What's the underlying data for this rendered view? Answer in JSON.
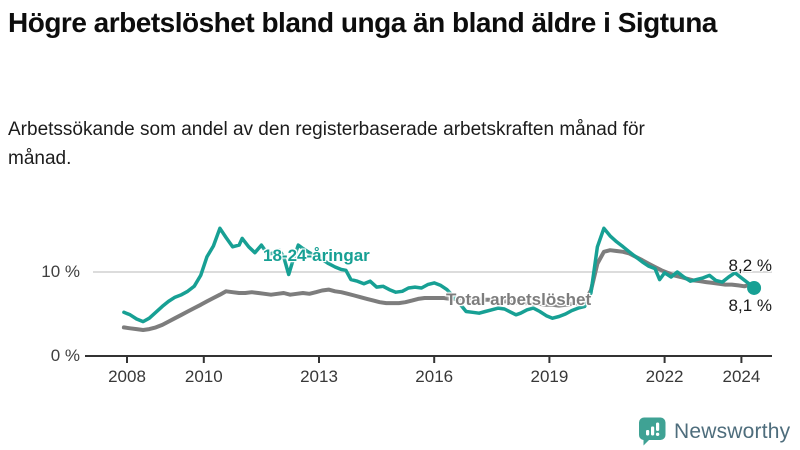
{
  "header": {
    "title": "Högre arbetslöshet bland unga än bland äldre i Sigtuna",
    "subtitle": "Arbetssökande som andel av den registerbaserade arbetskraften månad för månad."
  },
  "chart_data": {
    "type": "line",
    "title": "Högre arbetslöshet bland unga än bland äldre i Sigtuna",
    "subtitle": "Arbetssökande som andel av den registerbaserade arbetskraften månad för månad.",
    "unit": "%",
    "grid": "horizontal-10-only",
    "legend_position": "inline-labels-on-lines",
    "x_axis": {
      "min": 2007.9,
      "max": 2024.6,
      "ticks": [
        2008,
        2010,
        2013,
        2016,
        2019,
        2022,
        2024
      ]
    },
    "y_axis": {
      "min": 0,
      "max": 16,
      "ticks": [
        {
          "value": 10,
          "label": "10 %"
        },
        {
          "value": 0,
          "label": "0 %"
        }
      ],
      "grid_values": [
        10
      ]
    },
    "series": [
      {
        "name": "Total arbetslöshet",
        "color": "#7d7d7d",
        "width": 4,
        "end_dot": false,
        "end_label": "8,2 %",
        "end_value": 8.2,
        "points": [
          [
            2007.92,
            3.4
          ],
          [
            2008.08,
            3.3
          ],
          [
            2008.25,
            3.2
          ],
          [
            2008.42,
            3.1
          ],
          [
            2008.58,
            3.2
          ],
          [
            2008.75,
            3.4
          ],
          [
            2008.92,
            3.7
          ],
          [
            2009.08,
            4.1
          ],
          [
            2009.25,
            4.5
          ],
          [
            2009.42,
            4.9
          ],
          [
            2009.58,
            5.3
          ],
          [
            2009.75,
            5.7
          ],
          [
            2009.92,
            6.1
          ],
          [
            2010.08,
            6.5
          ],
          [
            2010.25,
            6.9
          ],
          [
            2010.42,
            7.3
          ],
          [
            2010.58,
            7.7
          ],
          [
            2010.75,
            7.6
          ],
          [
            2010.92,
            7.5
          ],
          [
            2011.08,
            7.5
          ],
          [
            2011.25,
            7.6
          ],
          [
            2011.42,
            7.5
          ],
          [
            2011.58,
            7.4
          ],
          [
            2011.75,
            7.3
          ],
          [
            2011.92,
            7.4
          ],
          [
            2012.08,
            7.5
          ],
          [
            2012.25,
            7.3
          ],
          [
            2012.42,
            7.4
          ],
          [
            2012.58,
            7.5
          ],
          [
            2012.75,
            7.4
          ],
          [
            2012.92,
            7.6
          ],
          [
            2013.08,
            7.8
          ],
          [
            2013.25,
            7.9
          ],
          [
            2013.42,
            7.7
          ],
          [
            2013.58,
            7.6
          ],
          [
            2013.75,
            7.4
          ],
          [
            2013.92,
            7.2
          ],
          [
            2014.08,
            7.0
          ],
          [
            2014.25,
            6.8
          ],
          [
            2014.42,
            6.6
          ],
          [
            2014.58,
            6.4
          ],
          [
            2014.75,
            6.3
          ],
          [
            2014.92,
            6.3
          ],
          [
            2015.08,
            6.3
          ],
          [
            2015.25,
            6.4
          ],
          [
            2015.42,
            6.6
          ],
          [
            2015.58,
            6.8
          ],
          [
            2015.75,
            6.9
          ],
          [
            2015.92,
            6.9
          ],
          [
            2016.08,
            6.9
          ],
          [
            2016.25,
            6.9
          ],
          [
            2016.42,
            6.8
          ],
          [
            2016.58,
            6.8
          ],
          [
            2016.75,
            6.9
          ],
          [
            2016.92,
            6.9
          ],
          [
            2017.08,
            6.8
          ],
          [
            2017.25,
            6.7
          ],
          [
            2017.42,
            6.7
          ],
          [
            2017.58,
            6.6
          ],
          [
            2017.75,
            6.5
          ],
          [
            2017.92,
            6.5
          ],
          [
            2018.08,
            6.4
          ],
          [
            2018.25,
            6.3
          ],
          [
            2018.42,
            6.3
          ],
          [
            2018.58,
            6.2
          ],
          [
            2018.75,
            6.2
          ],
          [
            2018.92,
            6.1
          ],
          [
            2019.08,
            6.1
          ],
          [
            2019.25,
            6.0
          ],
          [
            2019.42,
            6.1
          ],
          [
            2019.58,
            6.2
          ],
          [
            2019.75,
            6.3
          ],
          [
            2019.92,
            6.5
          ],
          [
            2020.08,
            7.8
          ],
          [
            2020.25,
            11.0
          ],
          [
            2020.42,
            12.4
          ],
          [
            2020.58,
            12.6
          ],
          [
            2020.75,
            12.5
          ],
          [
            2020.92,
            12.4
          ],
          [
            2021.08,
            12.2
          ],
          [
            2021.25,
            11.8
          ],
          [
            2021.42,
            11.4
          ],
          [
            2021.58,
            11.0
          ],
          [
            2021.75,
            10.6
          ],
          [
            2021.92,
            10.2
          ],
          [
            2022.08,
            9.9
          ],
          [
            2022.25,
            9.6
          ],
          [
            2022.42,
            9.4
          ],
          [
            2022.58,
            9.2
          ],
          [
            2022.75,
            9.0
          ],
          [
            2022.92,
            8.9
          ],
          [
            2023.08,
            8.8
          ],
          [
            2023.25,
            8.7
          ],
          [
            2023.42,
            8.6
          ],
          [
            2023.58,
            8.5
          ],
          [
            2023.75,
            8.5
          ],
          [
            2023.92,
            8.4
          ],
          [
            2024.08,
            8.3
          ],
          [
            2024.21,
            8.5
          ],
          [
            2024.33,
            8.2
          ]
        ]
      },
      {
        "name": "18-24-åringar",
        "color": "#17a094",
        "width": 3.5,
        "end_dot": true,
        "end_label": "8,1 %",
        "end_value": 8.1,
        "points": [
          [
            2007.92,
            5.2
          ],
          [
            2008.08,
            4.9
          ],
          [
            2008.25,
            4.4
          ],
          [
            2008.42,
            4.1
          ],
          [
            2008.58,
            4.5
          ],
          [
            2008.75,
            5.2
          ],
          [
            2008.92,
            5.9
          ],
          [
            2009.08,
            6.5
          ],
          [
            2009.25,
            7.0
          ],
          [
            2009.42,
            7.3
          ],
          [
            2009.58,
            7.7
          ],
          [
            2009.75,
            8.3
          ],
          [
            2009.92,
            9.6
          ],
          [
            2010.08,
            11.8
          ],
          [
            2010.25,
            13.1
          ],
          [
            2010.42,
            15.2
          ],
          [
            2010.58,
            14.1
          ],
          [
            2010.75,
            13.0
          ],
          [
            2010.92,
            13.2
          ],
          [
            2011.0,
            14.0
          ],
          [
            2011.17,
            13.0
          ],
          [
            2011.33,
            12.3
          ],
          [
            2011.5,
            13.2
          ],
          [
            2011.67,
            12.1
          ],
          [
            2011.83,
            12.3
          ],
          [
            2011.97,
            12.6
          ],
          [
            2012.08,
            11.8
          ],
          [
            2012.21,
            9.7
          ],
          [
            2012.33,
            11.5
          ],
          [
            2012.46,
            13.2
          ],
          [
            2012.58,
            12.8
          ],
          [
            2012.75,
            12.3
          ],
          [
            2012.92,
            11.9
          ],
          [
            2013.08,
            11.5
          ],
          [
            2013.25,
            11.0
          ],
          [
            2013.42,
            10.6
          ],
          [
            2013.58,
            10.3
          ],
          [
            2013.7,
            10.2
          ],
          [
            2013.83,
            9.1
          ],
          [
            2014.0,
            8.9
          ],
          [
            2014.17,
            8.6
          ],
          [
            2014.33,
            8.9
          ],
          [
            2014.5,
            8.2
          ],
          [
            2014.67,
            8.3
          ],
          [
            2014.83,
            7.9
          ],
          [
            2015.0,
            7.6
          ],
          [
            2015.17,
            7.7
          ],
          [
            2015.33,
            8.1
          ],
          [
            2015.5,
            8.2
          ],
          [
            2015.67,
            8.1
          ],
          [
            2015.83,
            8.5
          ],
          [
            2016.0,
            8.7
          ],
          [
            2016.17,
            8.4
          ],
          [
            2016.33,
            7.9
          ],
          [
            2016.5,
            7.1
          ],
          [
            2016.67,
            6.2
          ],
          [
            2016.83,
            5.3
          ],
          [
            2017.0,
            5.2
          ],
          [
            2017.17,
            5.1
          ],
          [
            2017.33,
            5.3
          ],
          [
            2017.5,
            5.5
          ],
          [
            2017.67,
            5.7
          ],
          [
            2017.83,
            5.6
          ],
          [
            2018.0,
            5.2
          ],
          [
            2018.13,
            4.9
          ],
          [
            2018.25,
            5.1
          ],
          [
            2018.42,
            5.5
          ],
          [
            2018.58,
            5.7
          ],
          [
            2018.75,
            5.3
          ],
          [
            2018.92,
            4.8
          ],
          [
            2019.08,
            4.5
          ],
          [
            2019.25,
            4.7
          ],
          [
            2019.42,
            5.0
          ],
          [
            2019.58,
            5.4
          ],
          [
            2019.75,
            5.7
          ],
          [
            2019.92,
            5.9
          ],
          [
            2020.08,
            7.5
          ],
          [
            2020.25,
            13.0
          ],
          [
            2020.42,
            15.2
          ],
          [
            2020.58,
            14.3
          ],
          [
            2020.75,
            13.6
          ],
          [
            2020.92,
            13.0
          ],
          [
            2021.08,
            12.4
          ],
          [
            2021.25,
            11.8
          ],
          [
            2021.42,
            11.2
          ],
          [
            2021.58,
            10.7
          ],
          [
            2021.75,
            10.4
          ],
          [
            2021.87,
            9.1
          ],
          [
            2022.0,
            9.9
          ],
          [
            2022.17,
            9.4
          ],
          [
            2022.33,
            10.0
          ],
          [
            2022.5,
            9.4
          ],
          [
            2022.67,
            8.9
          ],
          [
            2022.83,
            9.1
          ],
          [
            2023.0,
            9.3
          ],
          [
            2023.17,
            9.6
          ],
          [
            2023.33,
            9.0
          ],
          [
            2023.5,
            8.8
          ],
          [
            2023.67,
            9.4
          ],
          [
            2023.83,
            9.9
          ],
          [
            2024.0,
            9.3
          ],
          [
            2024.17,
            8.7
          ],
          [
            2024.33,
            8.1
          ]
        ]
      }
    ]
  },
  "footer": {
    "brand": "Newsworthy",
    "logo_icon": "bar-chart-speech-bubble-icon"
  },
  "colors": {
    "young_line": "#17a094",
    "total_line": "#7d7d7d",
    "grid": "#dcdcdc",
    "axis": "#333333",
    "tick_text": "#383838",
    "brand_icon": "#3fa294",
    "brand_text": "#4e6d7c"
  }
}
